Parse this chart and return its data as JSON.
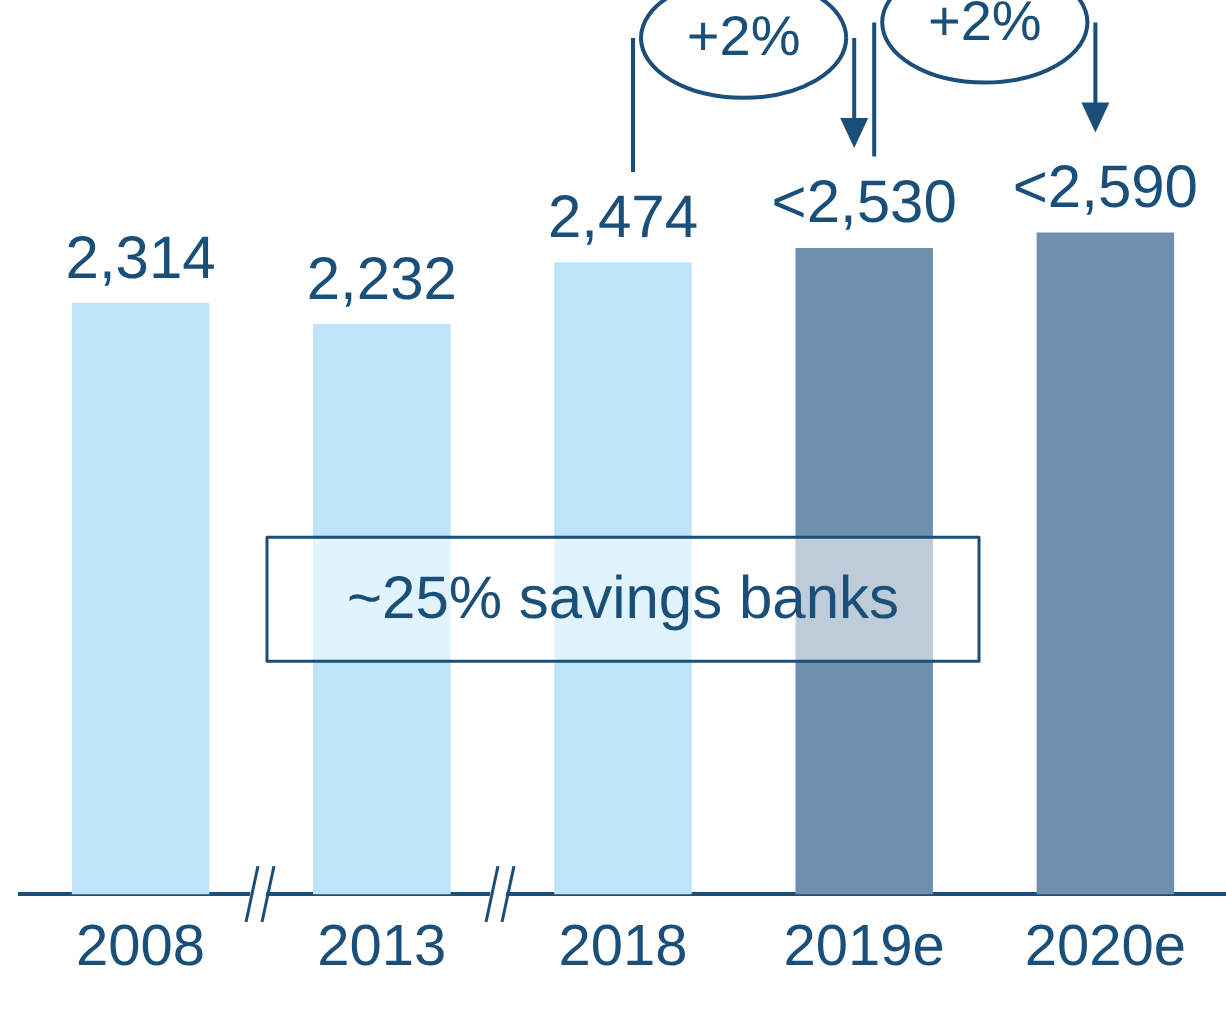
{
  "chart_data": {
    "type": "bar",
    "categories": [
      "2008",
      "2013",
      "2018",
      "2019e",
      "2020e"
    ],
    "values": [
      2314,
      2232,
      2474,
      2530,
      2590
    ],
    "colors": [
      "#bde4f8",
      "#bde4f8",
      "#bde4f8",
      "#6f8fae",
      "#6f8fae"
    ],
    "value_labels": [
      "2,314",
      "2,232",
      "2,474",
      "<2,530",
      "<2,590"
    ],
    "annotations": [
      "+2%",
      "+2%",
      "~25% savings banks"
    ],
    "grid": false,
    "legend": false
  }
}
